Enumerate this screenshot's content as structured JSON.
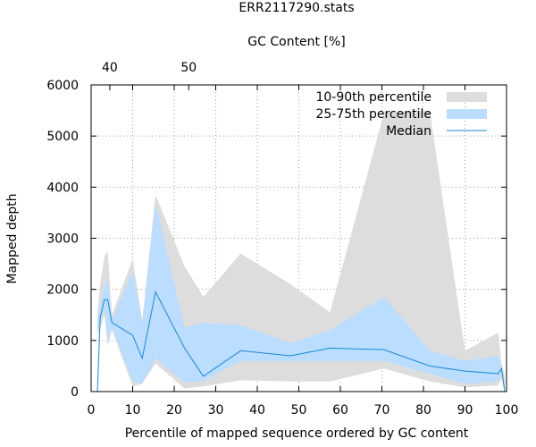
{
  "chart_data": {
    "type": "area",
    "title": "ERR2117290.stats",
    "top_axis_label": "GC Content [%]",
    "top_ticks": [
      {
        "label": "40",
        "x": 4.5
      },
      {
        "label": "50",
        "x": 23.5
      }
    ],
    "xlabel": "Percentile of mapped sequence ordered by GC content",
    "ylabel": "Mapped depth",
    "xlim": [
      0,
      100
    ],
    "ylim": [
      0,
      6000
    ],
    "xticks": [
      0,
      10,
      20,
      30,
      40,
      50,
      60,
      70,
      80,
      90,
      100
    ],
    "yticks": [
      0,
      1000,
      2000,
      3000,
      4000,
      5000,
      6000
    ],
    "grid": true,
    "legend_position": "top-right",
    "colors": {
      "band_10_90": "#dddddd",
      "band_25_75": "#bbddff",
      "median": "#1a88d1"
    },
    "x": [
      1.5,
      2.2,
      3.2,
      4.0,
      5.0,
      10.0,
      12.3,
      15.5,
      22.5,
      27.0,
      36.0,
      48.0,
      57.5,
      70.5,
      81.5,
      90.0,
      98.0,
      98.8,
      99.6
    ],
    "series": [
      {
        "name": "10-90th percentile",
        "low": [
          1100,
          1250,
          1500,
          900,
          1200,
          100,
          150,
          550,
          60,
          100,
          220,
          200,
          200,
          450,
          200,
          80,
          120,
          250,
          0
        ],
        "high": [
          1500,
          2100,
          2650,
          2750,
          1500,
          2600,
          1400,
          3850,
          2450,
          1850,
          2700,
          2100,
          1550,
          5450,
          5500,
          800,
          1150,
          550,
          300
        ]
      },
      {
        "name": "25-75th percentile",
        "low": [
          1200,
          1400,
          1600,
          1000,
          1250,
          200,
          150,
          650,
          180,
          200,
          600,
          600,
          600,
          600,
          350,
          150,
          200,
          350,
          0
        ],
        "high": [
          1400,
          1700,
          2050,
          2200,
          1400,
          2350,
          1350,
          3700,
          1250,
          1350,
          1300,
          950,
          1200,
          1850,
          800,
          600,
          700,
          450,
          150
        ]
      },
      {
        "name": "Median",
        "values": [
          0,
          1450,
          1800,
          1800,
          1350,
          1100,
          650,
          1950,
          850,
          300,
          800,
          700,
          850,
          820,
          500,
          400,
          350,
          450,
          0
        ]
      }
    ]
  }
}
